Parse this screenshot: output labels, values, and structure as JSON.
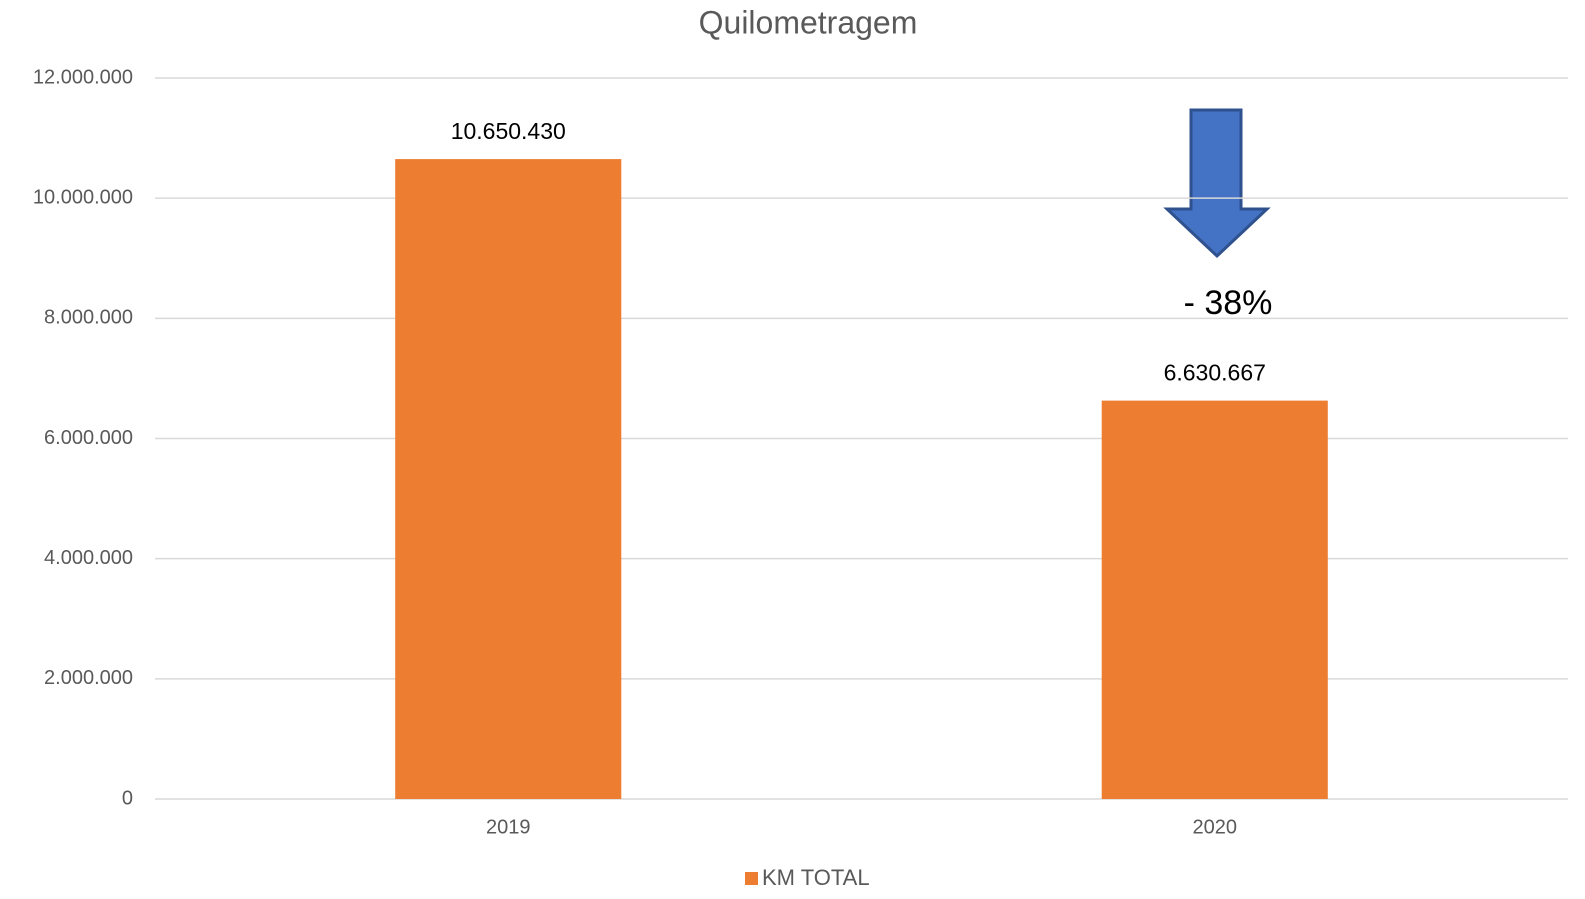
{
  "chart_data": {
    "type": "bar",
    "title": "Quilometragem",
    "categories": [
      "2019",
      "2020"
    ],
    "series": [
      {
        "name": "KM TOTAL",
        "color": "#ed7d31",
        "values": [
          10650430,
          6630667
        ],
        "value_labels": [
          "10.650.430",
          "6.630.667"
        ]
      }
    ],
    "ylim": [
      0,
      12000000
    ],
    "yticks": [
      0,
      {
        "value": 2000000,
        "label": "2.000.000"
      },
      {
        "value": 4000000,
        "label": "4.000.000"
      },
      {
        "value": 6000000,
        "label": "6.000.000"
      },
      {
        "value": 8000000,
        "label": "8.000.000"
      },
      {
        "value": 10000000,
        "label": "10.000.000"
      },
      {
        "value": 12000000,
        "label": "12.000.000"
      }
    ],
    "grid": true,
    "legend": "bottom",
    "annotation": "- 38%"
  }
}
